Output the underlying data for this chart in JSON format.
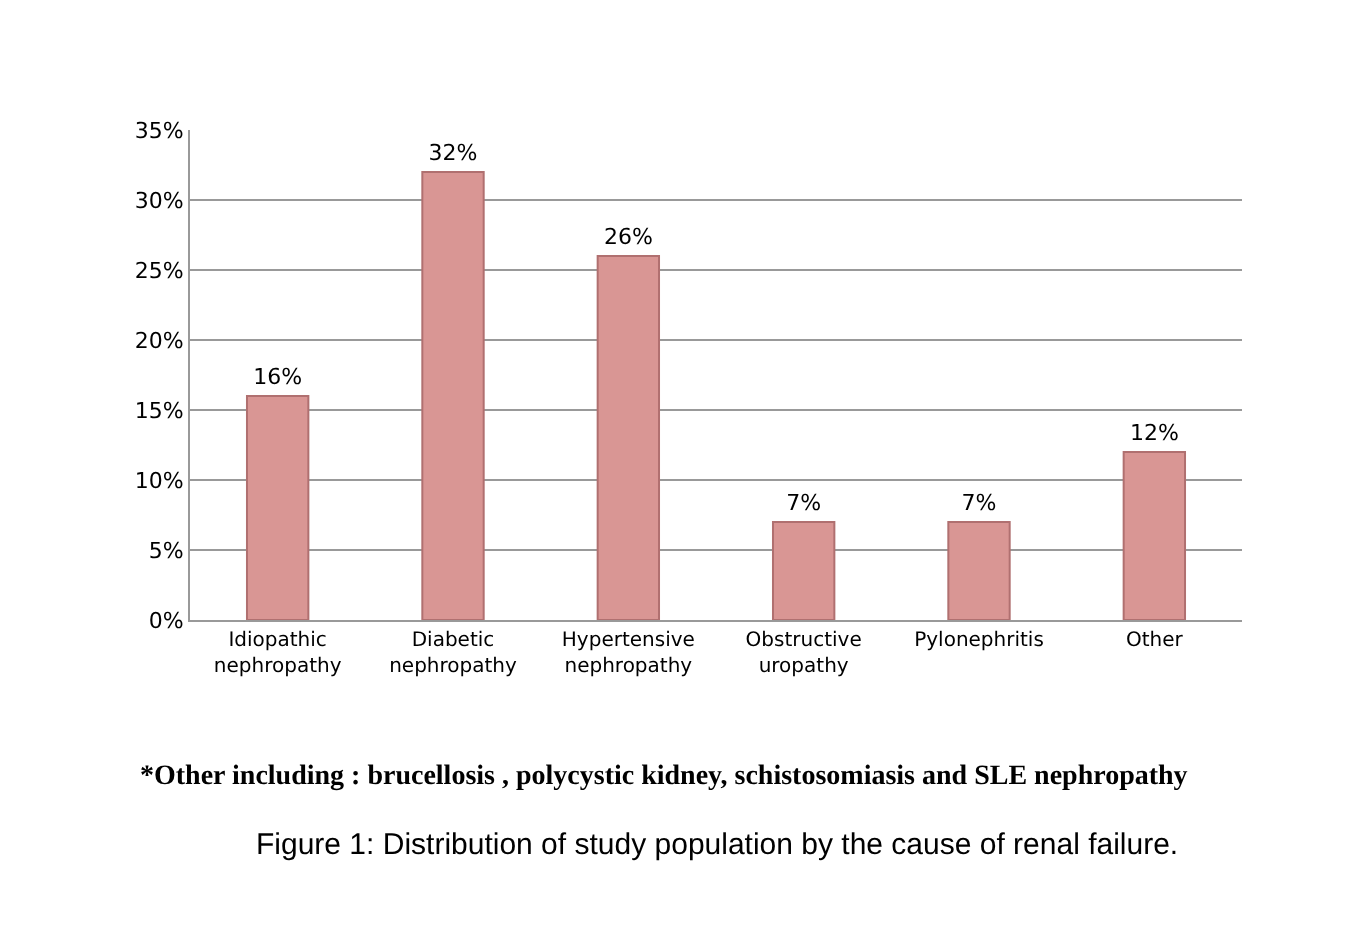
{
  "chart_data": {
    "type": "bar",
    "categories": [
      "Idiopathic nephropathy",
      "Diabetic nephropathy",
      "Hypertensive nephropathy",
      "Obstructive uropathy",
      "Pylonephritis",
      "Other"
    ],
    "values": [
      16,
      32,
      26,
      7,
      7,
      12
    ],
    "value_labels": [
      "16%",
      "32%",
      "26%",
      "7%",
      "7%",
      "12%"
    ],
    "color": "#d99694",
    "ylim": [
      0,
      35
    ],
    "yticks": [
      {
        "value": 0,
        "label": "0%"
      },
      {
        "value": 5,
        "label": "5%"
      },
      {
        "value": 10,
        "label": "10%"
      },
      {
        "value": 15,
        "label": "15%"
      },
      {
        "value": 20,
        "label": "20%"
      },
      {
        "value": 25,
        "label": "25%"
      },
      {
        "value": 30,
        "label": "30%"
      },
      {
        "value": 35,
        "label": "35%"
      }
    ],
    "grid": "y",
    "annotations": [
      "*Other including : brucellosis , polycystic kidney, schistosomiasis and SLE nephropathy",
      "Figure 1: Distribution of study population by the cause of renal failure."
    ]
  }
}
